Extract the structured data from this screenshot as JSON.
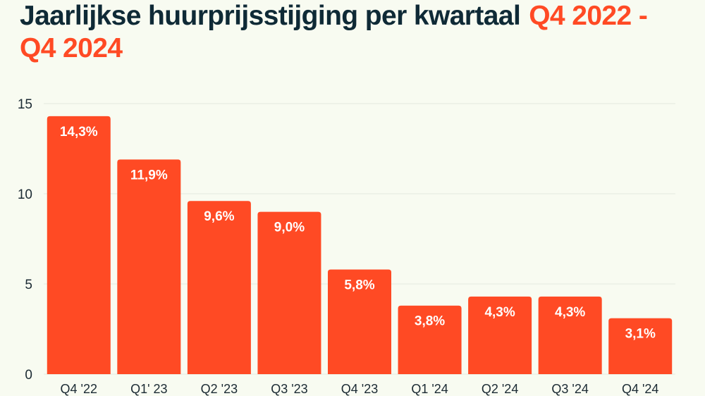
{
  "title": {
    "main": "Jaarlijkse huurprijsstijging per kwartaal",
    "period": "Q4 2022 - Q4 2024"
  },
  "colors": {
    "bar": "#ff4a24",
    "title_text": "#0f2a36",
    "accent": "#ff4a24",
    "axis_text": "#1b2a33",
    "grid": "#e3e8de",
    "label_text": "#ffffff"
  },
  "chart_data": {
    "type": "bar",
    "categories": [
      "Q4 '22",
      "Q1' 23",
      "Q2 '23",
      "Q3 '23",
      "Q4 '23",
      "Q1 '24",
      "Q2 '24",
      "Q3 '24",
      "Q4 '24"
    ],
    "values": [
      14.3,
      11.9,
      9.6,
      9.0,
      5.8,
      3.8,
      4.3,
      4.3,
      3.1
    ],
    "data_labels": [
      "14,3%",
      "11,9%",
      "9,6%",
      "9,0%",
      "5,8%",
      "3,8%",
      "4,3%",
      "4,3%",
      "3,1%"
    ],
    "ylim": [
      0,
      15
    ],
    "yticks": [
      0,
      5,
      10,
      15
    ],
    "grid": true,
    "legend": "none"
  }
}
